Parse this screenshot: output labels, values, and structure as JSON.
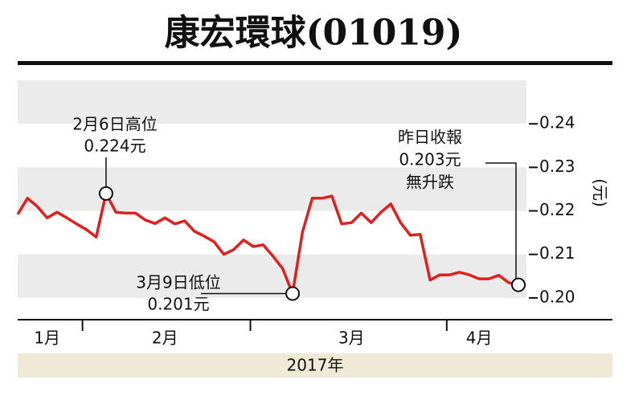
{
  "chart_data": {
    "type": "line",
    "title": "康宏環球(01019)",
    "y_label": "(元)",
    "x_label": "2017年",
    "categories": [
      null,
      null,
      null,
      "1月",
      null,
      null,
      null,
      null,
      null,
      null,
      null,
      null,
      null,
      null,
      null,
      "2月",
      null,
      null,
      null,
      null,
      null,
      null,
      null,
      null,
      null,
      null,
      null,
      null,
      null,
      null,
      null,
      null,
      null,
      null,
      "3月",
      null,
      null,
      null,
      null,
      null,
      null,
      null,
      null,
      null,
      null,
      null,
      null,
      "4月",
      null,
      null,
      null,
      null
    ],
    "series": [
      {
        "name": "康宏環球",
        "color": "#e0201e",
        "values": [
          0.2192,
          0.2229,
          0.221,
          0.2184,
          0.2197,
          0.2184,
          0.217,
          0.2157,
          0.214,
          0.224,
          0.2197,
          0.2195,
          0.2195,
          0.2179,
          0.2171,
          0.2184,
          0.217,
          0.2177,
          0.2153,
          0.2142,
          0.2129,
          0.21,
          0.2111,
          0.2133,
          0.2118,
          0.2122,
          0.2096,
          0.2067,
          0.201,
          0.2151,
          0.2229,
          0.2229,
          0.2234,
          0.217,
          0.2173,
          0.2195,
          0.2173,
          0.2197,
          0.2216,
          0.2173,
          0.2144,
          0.2146,
          0.2041,
          0.2053,
          0.2053,
          0.2059,
          0.2053,
          0.2044,
          0.2044,
          0.2052,
          0.2035,
          0.203
        ]
      }
    ],
    "ylim": [
      0.195,
      0.25
    ],
    "yticks": [
      {
        "value": 0.2,
        "label": "0.20"
      },
      0.21,
      0.22,
      0.23,
      0.24
    ],
    "annotations": [
      [
        "2月6日高位",
        "0.224元"
      ],
      [
        "3月9日低位",
        "0.201元"
      ],
      [
        "昨日收報",
        "0.203元",
        "無升跌"
      ]
    ]
  }
}
